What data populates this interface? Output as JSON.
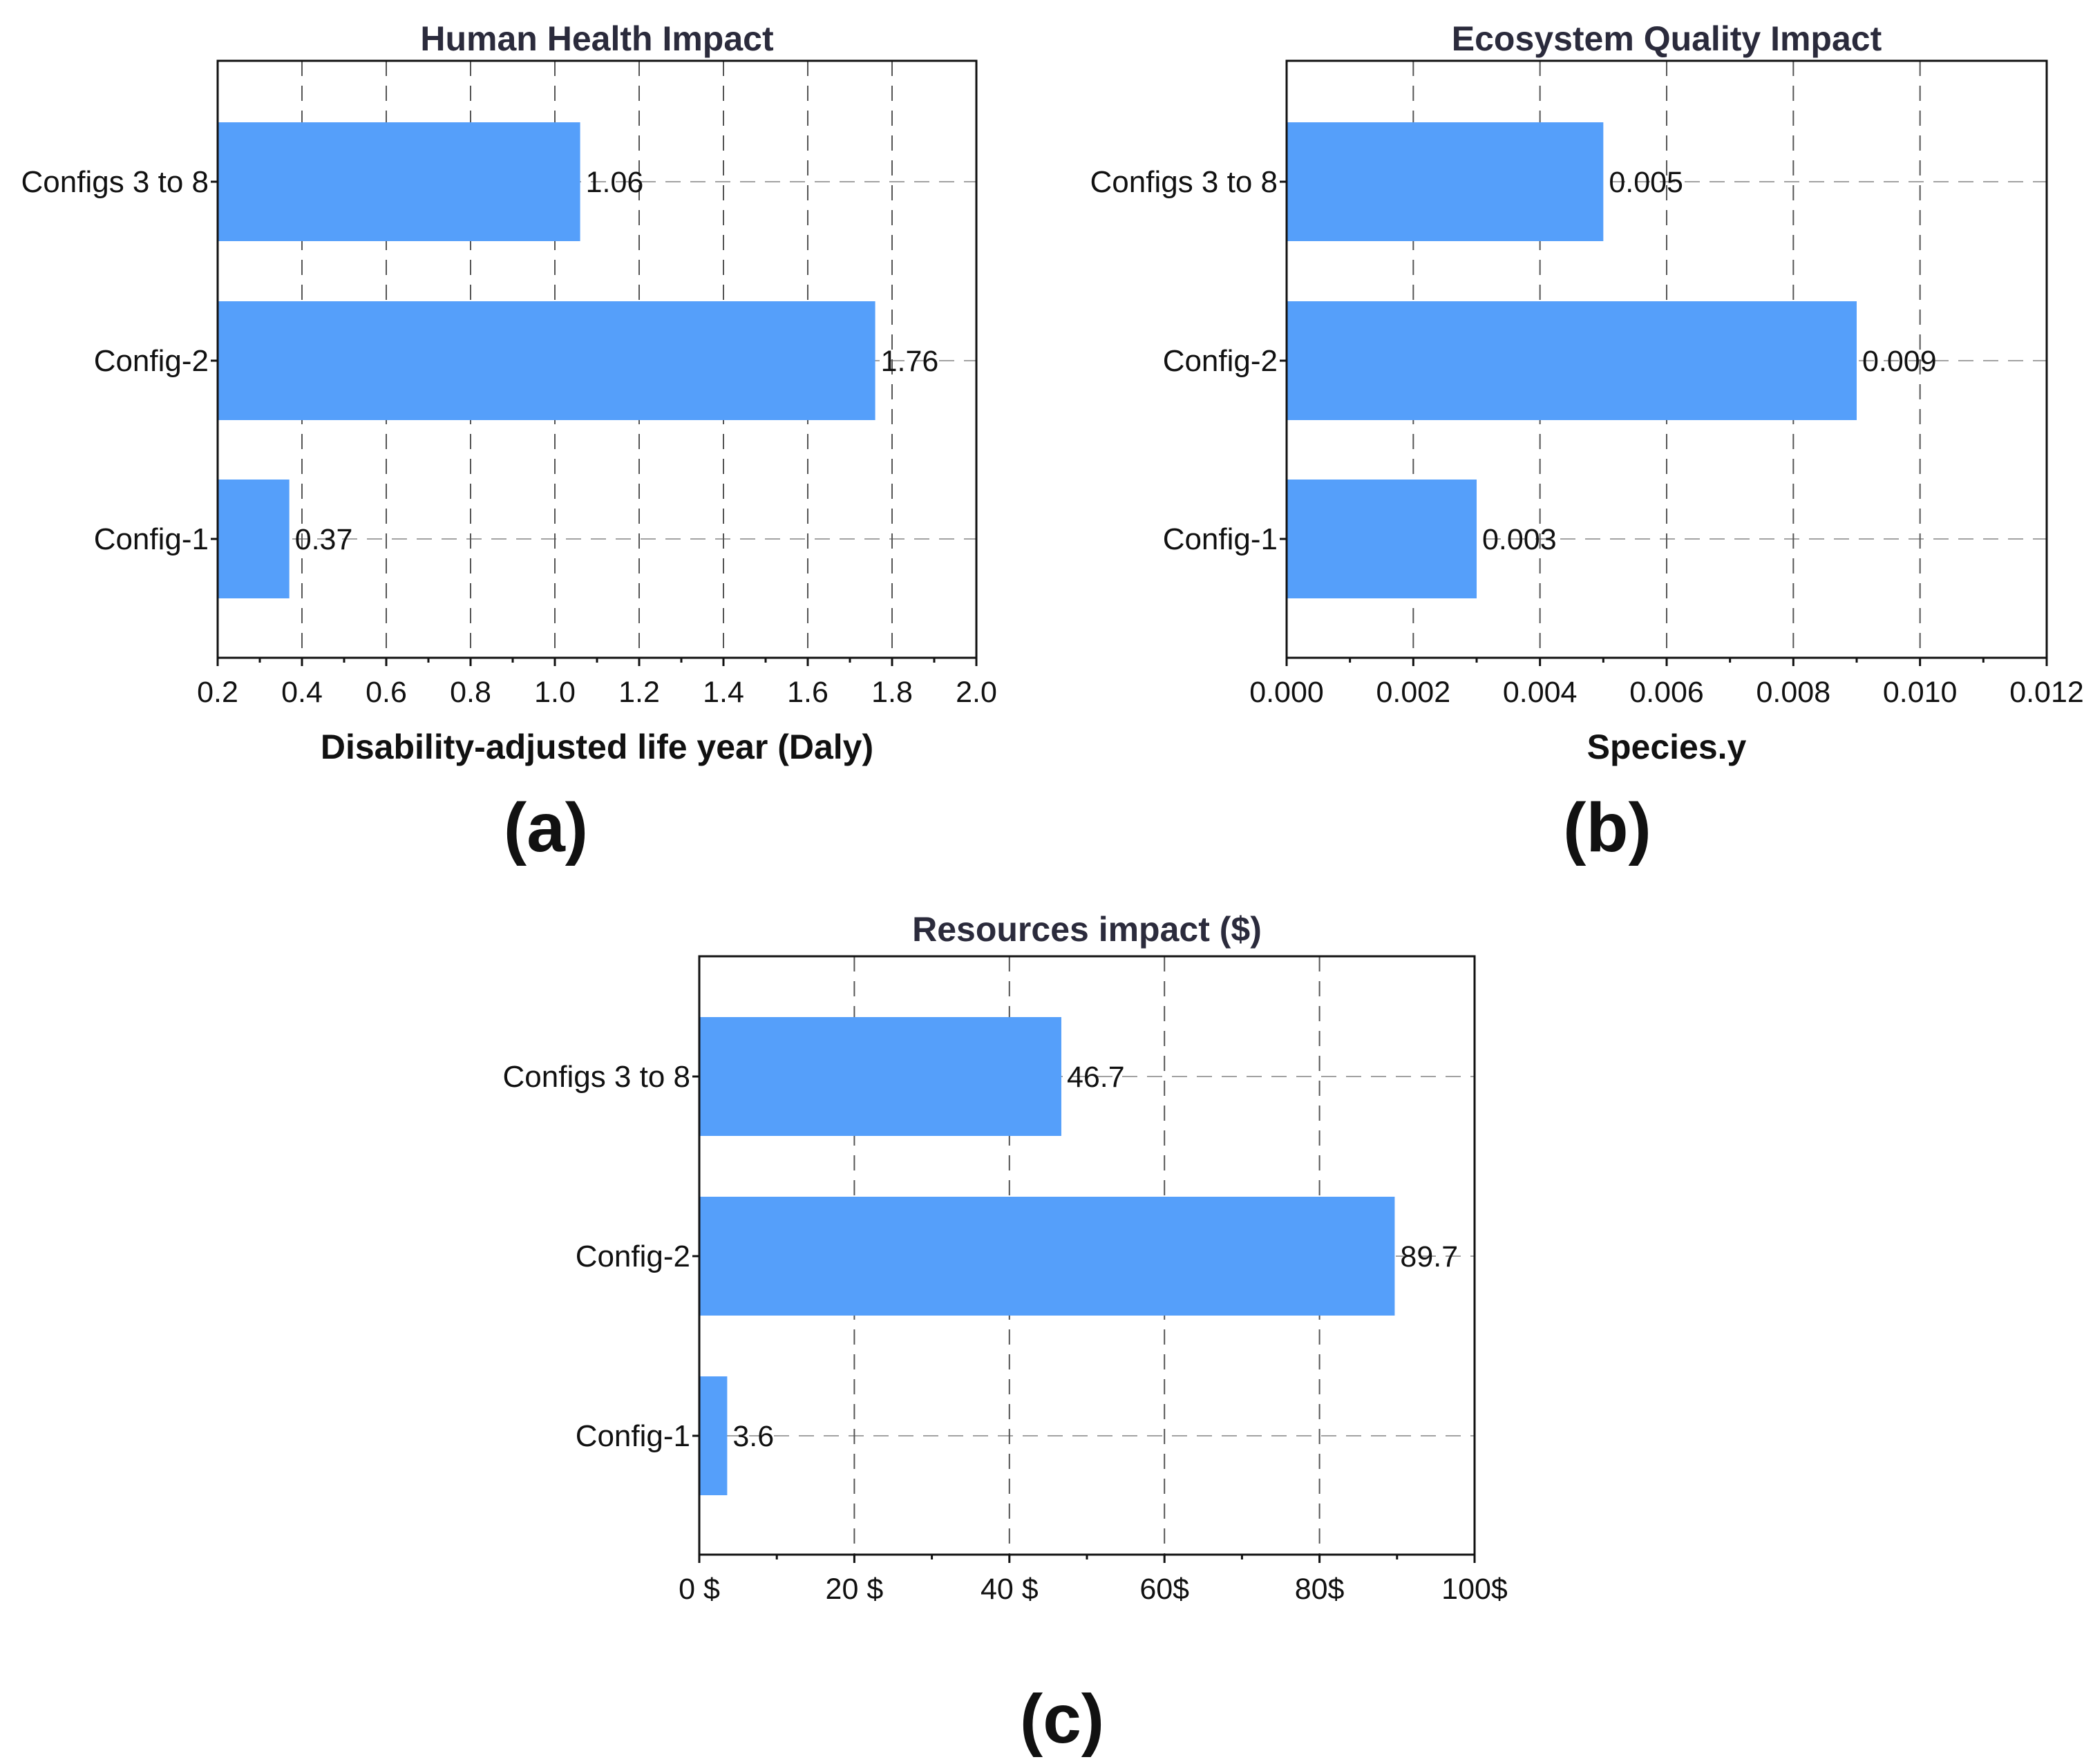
{
  "colors": {
    "bar": "#559ffa",
    "frame": "#111111",
    "grid": "#555555",
    "title": "#2b2b3c"
  },
  "chart_data": [
    {
      "id": "a",
      "type": "bar",
      "orientation": "horizontal",
      "title": "Human Health Impact",
      "xlabel": "Disability-adjusted life year (Daly)",
      "panel_label": "(a)",
      "categories": [
        "Configs 3 to 8",
        "Config-2",
        "Config-1"
      ],
      "values": [
        1.06,
        1.76,
        0.37
      ],
      "value_labels": [
        "1.06",
        "1.76",
        "0.37"
      ],
      "xlim": [
        0.2,
        2.0
      ],
      "xticks": [
        0.2,
        0.4,
        0.6,
        0.8,
        1.0,
        1.2,
        1.4,
        1.6,
        1.8,
        2.0
      ],
      "xtick_labels": [
        "0.2",
        "0.4",
        "0.6",
        "0.8",
        "1.0",
        "1.2",
        "1.4",
        "1.6",
        "1.8",
        "2.0"
      ],
      "grid": true
    },
    {
      "id": "b",
      "type": "bar",
      "orientation": "horizontal",
      "title": "Ecosystem Quality Impact",
      "xlabel": "Species.y",
      "panel_label": "(b)",
      "categories": [
        "Configs 3 to 8",
        "Config-2",
        "Config-1"
      ],
      "values": [
        0.005,
        0.009,
        0.003
      ],
      "value_labels": [
        "0.005",
        "0.009",
        "0.003"
      ],
      "xlim": [
        0.0,
        0.012
      ],
      "xticks": [
        0.0,
        0.002,
        0.004,
        0.006,
        0.008,
        0.01,
        0.012
      ],
      "xtick_labels": [
        "0.000",
        "0.002",
        "0.004",
        "0.006",
        "0.008",
        "0.010",
        "0.012"
      ],
      "grid": true
    },
    {
      "id": "c",
      "type": "bar",
      "orientation": "horizontal",
      "title": "Resources impact ($)",
      "xlabel": "",
      "panel_label": "(c)",
      "categories": [
        "Configs 3 to 8",
        "Config-2",
        "Config-1"
      ],
      "values": [
        46.7,
        89.7,
        3.6
      ],
      "value_labels": [
        "46.7",
        "89.7",
        "3.6"
      ],
      "xlim": [
        0,
        100
      ],
      "xticks": [
        0,
        20,
        40,
        60,
        80,
        100
      ],
      "xtick_labels": [
        "0 $",
        "20 $",
        "40 $",
        "60$",
        "80$",
        "100$"
      ],
      "grid": true
    }
  ]
}
